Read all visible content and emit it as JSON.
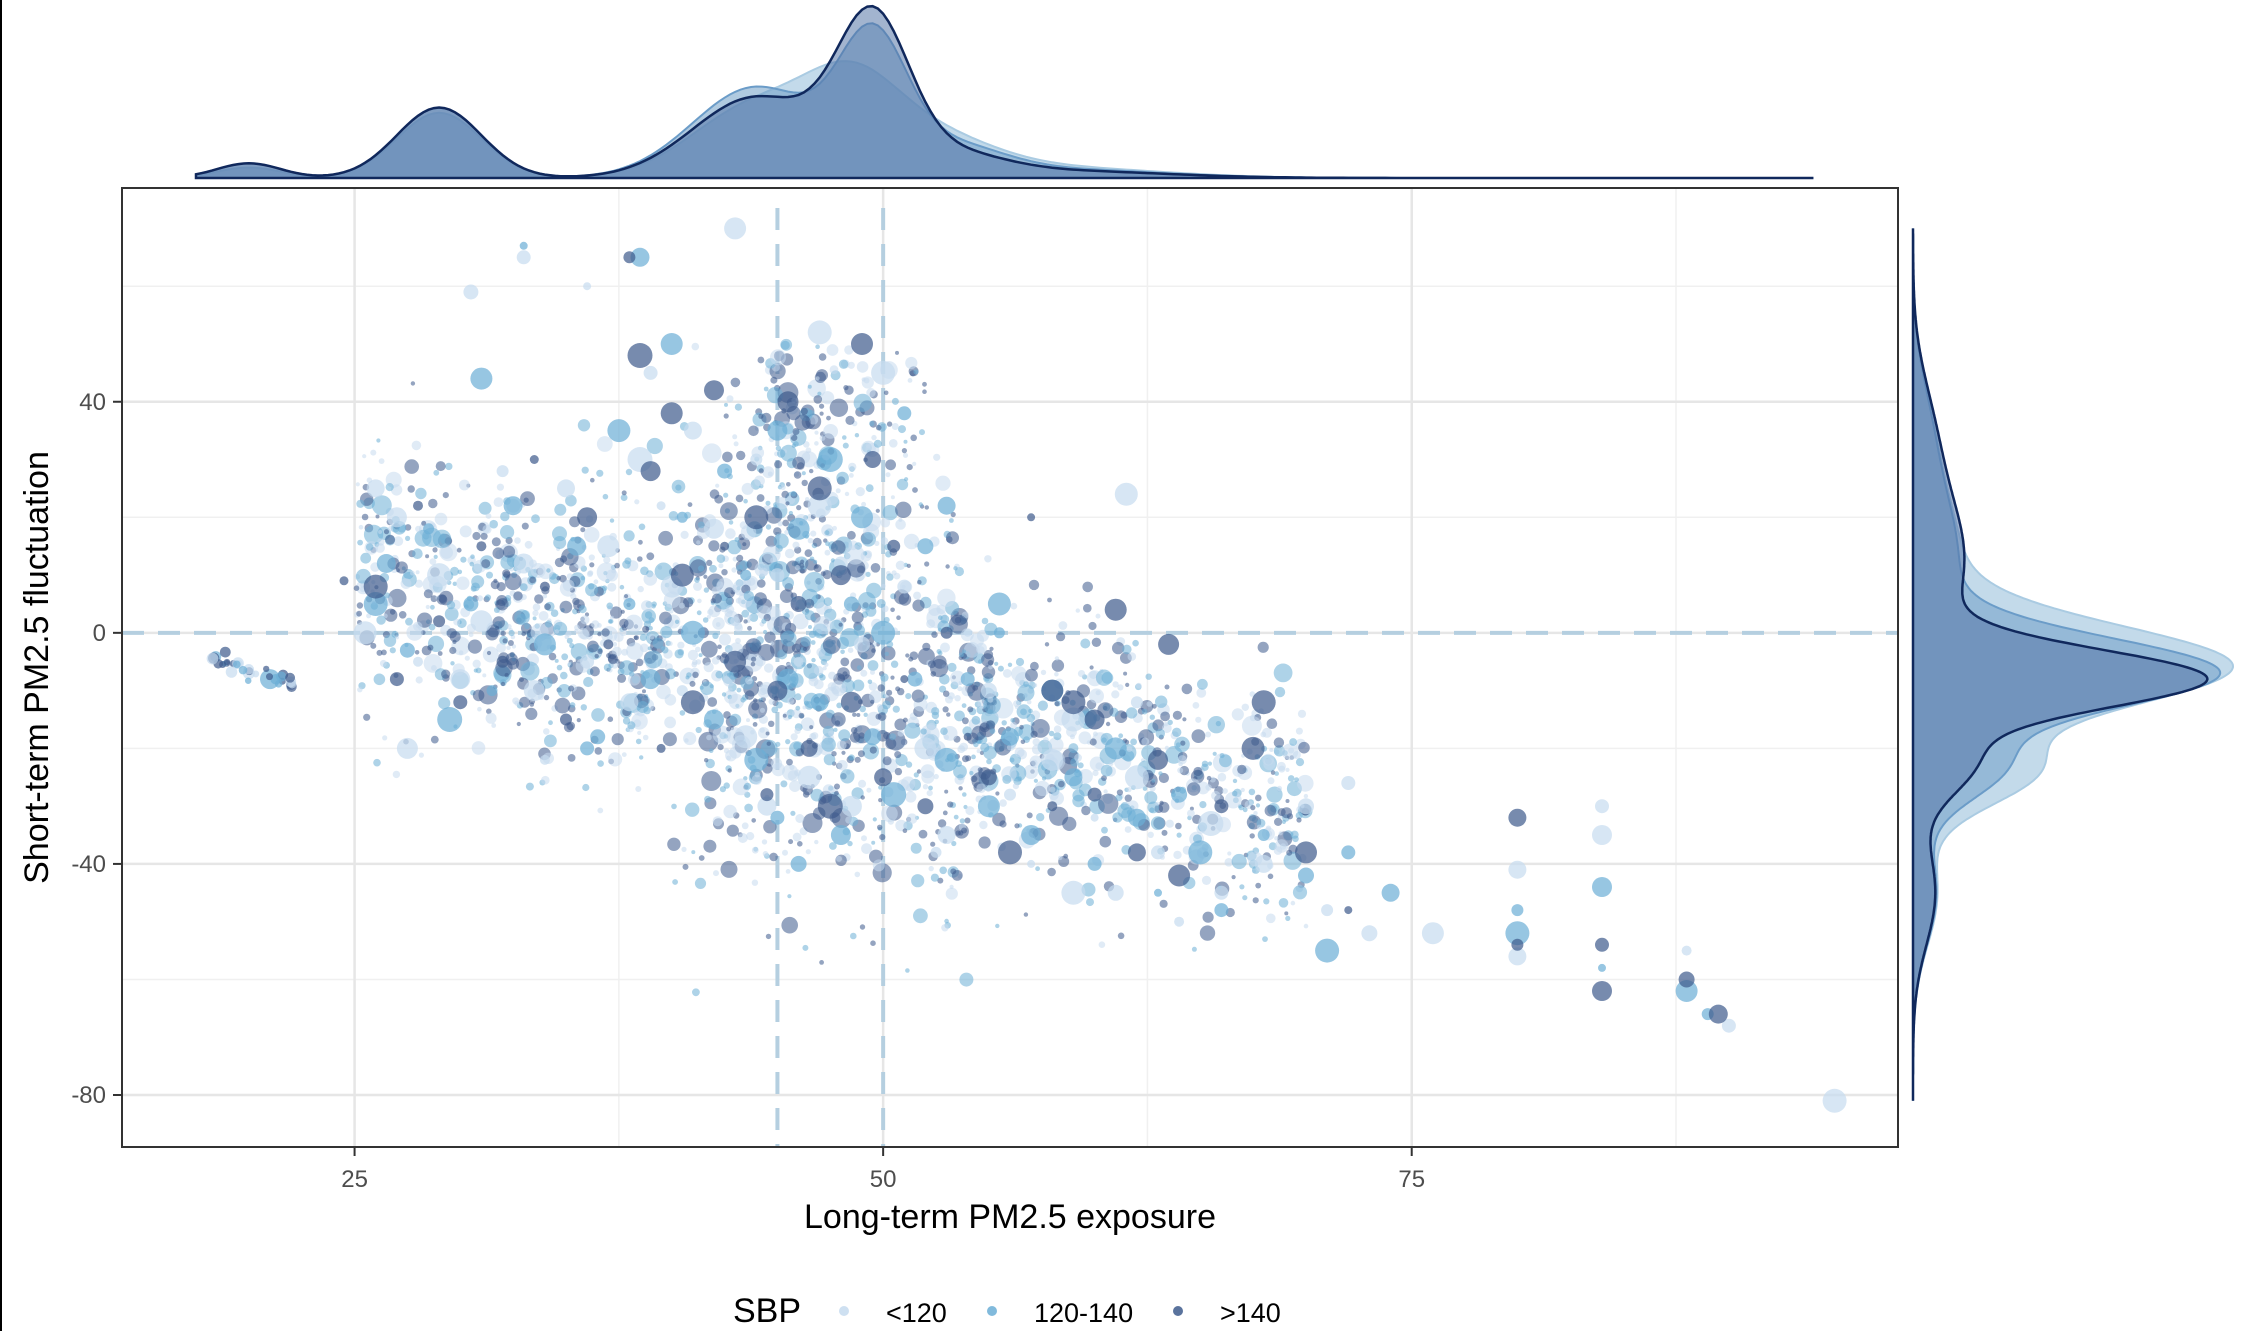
{
  "chart_data": {
    "type": "scatter",
    "xlabel": "Long-term PM2.5 exposure",
    "ylabel": "Short-term PM2.5 fluctuation",
    "xlim": [
      14,
      98
    ],
    "ylim": [
      -89,
      77
    ],
    "x_ticks": [
      25,
      50,
      75
    ],
    "x_tick_labels": [
      "25",
      "50",
      "75"
    ],
    "y_ticks": [
      40,
      0,
      -40,
      -80
    ],
    "y_tick_labels": [
      "40",
      "0",
      "-40",
      "-80"
    ],
    "grid": true,
    "reference_lines": {
      "horizontal": [
        0
      ],
      "vertical": [
        45,
        50
      ]
    },
    "marginal_densities": {
      "top": "x",
      "right": "y"
    },
    "legend": {
      "title": "SBP",
      "position": "bottom",
      "items": [
        {
          "label": "<120",
          "color": "#c6dbef"
        },
        {
          "label": "120-140",
          "color": "#6baed6"
        },
        {
          "label": ">140",
          "color": "#3d5a8c"
        }
      ]
    },
    "series": [
      {
        "group": "<120",
        "color": "#c6dbef",
        "points": [
          [
            20.0,
            -7
          ],
          [
            26.0,
            25
          ],
          [
            27.0,
            20
          ],
          [
            28.0,
            -5
          ],
          [
            29.0,
            10
          ],
          [
            30.0,
            -8
          ],
          [
            31.0,
            2
          ],
          [
            32.0,
            28
          ],
          [
            33.0,
            12
          ],
          [
            33.5,
            -10
          ],
          [
            35.0,
            25
          ],
          [
            36.0,
            -5
          ],
          [
            37.0,
            15
          ],
          [
            38.0,
            -12
          ],
          [
            38.5,
            30
          ],
          [
            39.0,
            45
          ],
          [
            39.5,
            22
          ],
          [
            40.0,
            8
          ],
          [
            40.5,
            -10
          ],
          [
            41.0,
            35
          ],
          [
            42.0,
            18
          ],
          [
            43.0,
            2
          ],
          [
            43.5,
            -18
          ],
          [
            44.0,
            30
          ],
          [
            45.0,
            10
          ],
          [
            46.0,
            -5
          ],
          [
            46.5,
            -25
          ],
          [
            47.0,
            22
          ],
          [
            48.0,
            12
          ],
          [
            48.5,
            -30
          ],
          [
            49.0,
            -2
          ],
          [
            50.0,
            45
          ],
          [
            51.0,
            8
          ],
          [
            52.0,
            -20
          ],
          [
            53.0,
            -35
          ],
          [
            54.0,
            0
          ],
          [
            55.0,
            -10
          ],
          [
            56.0,
            -28
          ],
          [
            57.0,
            -40
          ],
          [
            58.0,
            -22
          ],
          [
            59.0,
            -15
          ],
          [
            60.0,
            -32
          ],
          [
            61.0,
            -45
          ],
          [
            62.0,
            -25
          ],
          [
            63.0,
            -38
          ],
          [
            64.0,
            -50
          ],
          [
            66.0,
            -45
          ],
          [
            68.0,
            -40
          ],
          [
            70.0,
            -30
          ],
          [
            71.0,
            -48
          ],
          [
            73.0,
            -52
          ],
          [
            76.0,
            -52
          ],
          [
            80.0,
            -41
          ],
          [
            80.0,
            -56
          ],
          [
            84.0,
            -30
          ],
          [
            84.0,
            -35
          ],
          [
            88.0,
            -55
          ],
          [
            90.0,
            -68
          ],
          [
            95.0,
            -81
          ],
          [
            30.5,
            59
          ],
          [
            33.0,
            65
          ],
          [
            36.0,
            60
          ],
          [
            43.0,
            70
          ],
          [
            47.0,
            52
          ],
          [
            27.5,
            -20
          ],
          [
            25.5,
            0
          ],
          [
            34.0,
            -22
          ],
          [
            44.5,
            -30
          ],
          [
            52.5,
            -38
          ],
          [
            59.0,
            -45
          ],
          [
            65.5,
            -33
          ],
          [
            61.5,
            24
          ],
          [
            72.0,
            -26
          ],
          [
            62.0,
            -12
          ]
        ]
      },
      {
        "group": "120-140",
        "color": "#6baed6",
        "points": [
          [
            21.0,
            -8
          ],
          [
            26.5,
            12
          ],
          [
            27.5,
            -3
          ],
          [
            28.5,
            18
          ],
          [
            29.5,
            -15
          ],
          [
            30.5,
            5
          ],
          [
            31.5,
            -10
          ],
          [
            32.5,
            22
          ],
          [
            33.0,
            67
          ],
          [
            34.0,
            -2
          ],
          [
            35.5,
            15
          ],
          [
            36.5,
            -18
          ],
          [
            37.5,
            35
          ],
          [
            38.0,
            5
          ],
          [
            38.5,
            65
          ],
          [
            39.0,
            -8
          ],
          [
            40.0,
            50
          ],
          [
            40.5,
            20
          ],
          [
            41.0,
            0
          ],
          [
            42.0,
            -15
          ],
          [
            42.5,
            28
          ],
          [
            43.5,
            10
          ],
          [
            44.0,
            -22
          ],
          [
            45.0,
            35
          ],
          [
            45.5,
            -8
          ],
          [
            46.0,
            18
          ],
          [
            47.0,
            -12
          ],
          [
            47.5,
            30
          ],
          [
            48.0,
            -35
          ],
          [
            48.5,
            5
          ],
          [
            49.0,
            20
          ],
          [
            49.5,
            -18
          ],
          [
            50.0,
            0
          ],
          [
            50.5,
            -28
          ],
          [
            51.0,
            38
          ],
          [
            51.5,
            -8
          ],
          [
            52.0,
            15
          ],
          [
            53.0,
            -22
          ],
          [
            54.0,
            -8
          ],
          [
            55.0,
            -30
          ],
          [
            55.5,
            5
          ],
          [
            56.0,
            -18
          ],
          [
            57.0,
            -35
          ],
          [
            58.0,
            -10
          ],
          [
            59.0,
            -25
          ],
          [
            60.0,
            -40
          ],
          [
            61.0,
            -20
          ],
          [
            62.0,
            -32
          ],
          [
            63.0,
            -45
          ],
          [
            64.0,
            -28
          ],
          [
            65.0,
            -38
          ],
          [
            66.0,
            -48
          ],
          [
            68.0,
            -35
          ],
          [
            70.0,
            -42
          ],
          [
            71.0,
            -55
          ],
          [
            72.0,
            -38
          ],
          [
            74.0,
            -45
          ],
          [
            80.0,
            -48
          ],
          [
            80.0,
            -52
          ],
          [
            84.0,
            -44
          ],
          [
            84.0,
            -58
          ],
          [
            88.0,
            -62
          ],
          [
            89.0,
            -66
          ],
          [
            31.0,
            44
          ],
          [
            55.5,
            0
          ],
          [
            53.0,
            22
          ],
          [
            46.0,
            -40
          ],
          [
            45.0,
            -32
          ],
          [
            36.0,
            -20
          ],
          [
            26.0,
            5
          ]
        ]
      },
      {
        "group": ">140",
        "color": "#3d5a8c",
        "points": [
          [
            22.0,
            -9
          ],
          [
            26.0,
            8
          ],
          [
            27.0,
            -8
          ],
          [
            28.0,
            22
          ],
          [
            29.0,
            2
          ],
          [
            30.0,
            -12
          ],
          [
            31.0,
            15
          ],
          [
            32.0,
            -5
          ],
          [
            33.5,
            30
          ],
          [
            34.0,
            8
          ],
          [
            35.0,
            -15
          ],
          [
            36.0,
            20
          ],
          [
            37.0,
            -2
          ],
          [
            38.0,
            65
          ],
          [
            38.5,
            48
          ],
          [
            39.0,
            28
          ],
          [
            39.5,
            -20
          ],
          [
            40.0,
            38
          ],
          [
            40.5,
            10
          ],
          [
            41.0,
            -12
          ],
          [
            42.0,
            42
          ],
          [
            42.5,
            15
          ],
          [
            43.0,
            -5
          ],
          [
            44.0,
            20
          ],
          [
            44.5,
            -28
          ],
          [
            45.0,
            -10
          ],
          [
            45.5,
            40
          ],
          [
            46.0,
            5
          ],
          [
            46.5,
            -20
          ],
          [
            47.0,
            25
          ],
          [
            47.5,
            -30
          ],
          [
            48.0,
            10
          ],
          [
            48.5,
            -12
          ],
          [
            49.0,
            50
          ],
          [
            49.5,
            30
          ],
          [
            50.0,
            -25
          ],
          [
            50.5,
            15
          ],
          [
            51.0,
            -8
          ],
          [
            52.0,
            -30
          ],
          [
            53.0,
            0
          ],
          [
            54.0,
            -18
          ],
          [
            55.0,
            -25
          ],
          [
            56.0,
            -38
          ],
          [
            57.0,
            20
          ],
          [
            58.0,
            -30
          ],
          [
            59.0,
            -12
          ],
          [
            60.0,
            -28
          ],
          [
            62.0,
            -38
          ],
          [
            63.0,
            -22
          ],
          [
            64.0,
            -42
          ],
          [
            66.0,
            -30
          ],
          [
            68.0,
            -12
          ],
          [
            70.0,
            -38
          ],
          [
            72.0,
            -48
          ],
          [
            80.0,
            -54
          ],
          [
            80.0,
            -32
          ],
          [
            84.0,
            -54
          ],
          [
            84.0,
            -62
          ],
          [
            88.0,
            -60
          ],
          [
            89.5,
            -66
          ],
          [
            24.5,
            9
          ],
          [
            61.0,
            4
          ],
          [
            63.5,
            -2
          ],
          [
            58.0,
            -10
          ],
          [
            60.0,
            -15
          ],
          [
            67.5,
            -20
          ]
        ]
      }
    ]
  }
}
